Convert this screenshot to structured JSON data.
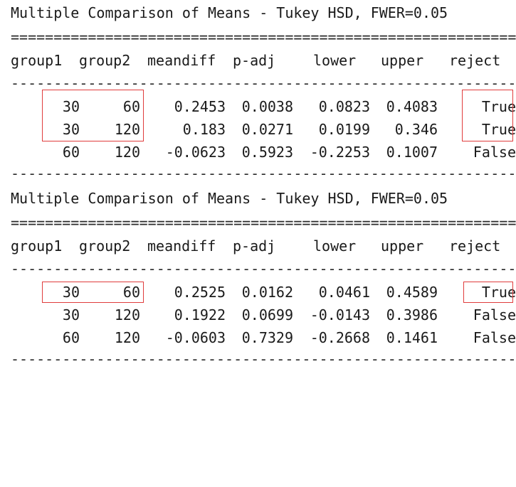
{
  "tables": [
    {
      "title": "Multiple Comparison of Means - Tukey HSD, FWER=0.05",
      "eq_line": "==============================================================",
      "dash_line": "----------------------------------------------------------------",
      "headers": [
        "group1",
        "group2",
        "meandiff",
        "p-adj",
        "lower",
        "upper",
        "reject"
      ],
      "rows": [
        [
          "30",
          "60",
          "0.2453",
          "0.0038",
          "0.0823",
          "0.4083",
          "True"
        ],
        [
          "30",
          "120",
          "0.183",
          "0.0271",
          "0.0199",
          "0.346",
          "True"
        ],
        [
          "60",
          "120",
          "-0.0623",
          "0.5923",
          "-0.2253",
          "0.1007",
          "False"
        ]
      ]
    },
    {
      "title": "Multiple Comparison of Means - Tukey HSD, FWER=0.05",
      "eq_line": "==============================================================",
      "dash_line": "----------------------------------------------------------------",
      "headers": [
        "group1",
        "group2",
        "meandiff",
        "p-adj",
        "lower",
        "upper",
        "reject"
      ],
      "rows": [
        [
          "30",
          "60",
          "0.2525",
          "0.0162",
          "0.0461",
          "0.4589",
          "True"
        ],
        [
          "30",
          "120",
          "0.1922",
          "0.0699",
          "-0.0143",
          "0.3986",
          "False"
        ],
        [
          "60",
          "120",
          "-0.0603",
          "0.7329",
          "-0.2668",
          "0.1461",
          "False"
        ]
      ]
    }
  ],
  "highlight_color": "#e03c3c"
}
